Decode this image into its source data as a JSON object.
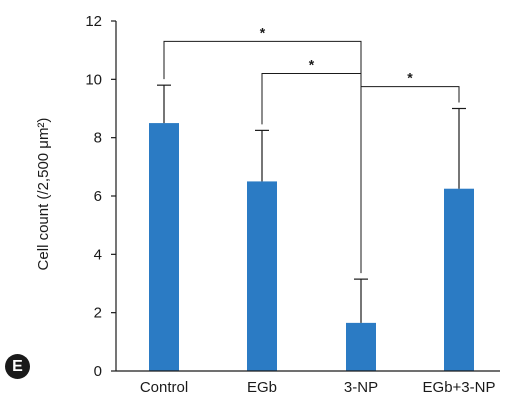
{
  "panel_label": "E",
  "chart_data": {
    "type": "bar",
    "title": "",
    "xlabel": "",
    "ylabel": "Cell count (/2,500 μm²)",
    "ylim": [
      0,
      12
    ],
    "yticks": [
      0,
      2,
      4,
      6,
      8,
      10,
      12
    ],
    "categories": [
      "Control",
      "EGb",
      "3-NP",
      "EGb+3-NP"
    ],
    "values": [
      8.5,
      6.5,
      1.65,
      6.25
    ],
    "error_upper": [
      1.3,
      1.75,
      1.5,
      2.75
    ],
    "bar_color": "#2b7bc4",
    "grid": false,
    "significance": [
      {
        "from": 0,
        "to": 2,
        "label": "*",
        "y": 11.3
      },
      {
        "from": 1,
        "to": 2,
        "label": "*",
        "y": 10.2
      },
      {
        "from": 2,
        "to": 3,
        "label": "*",
        "y": 9.75
      }
    ]
  }
}
